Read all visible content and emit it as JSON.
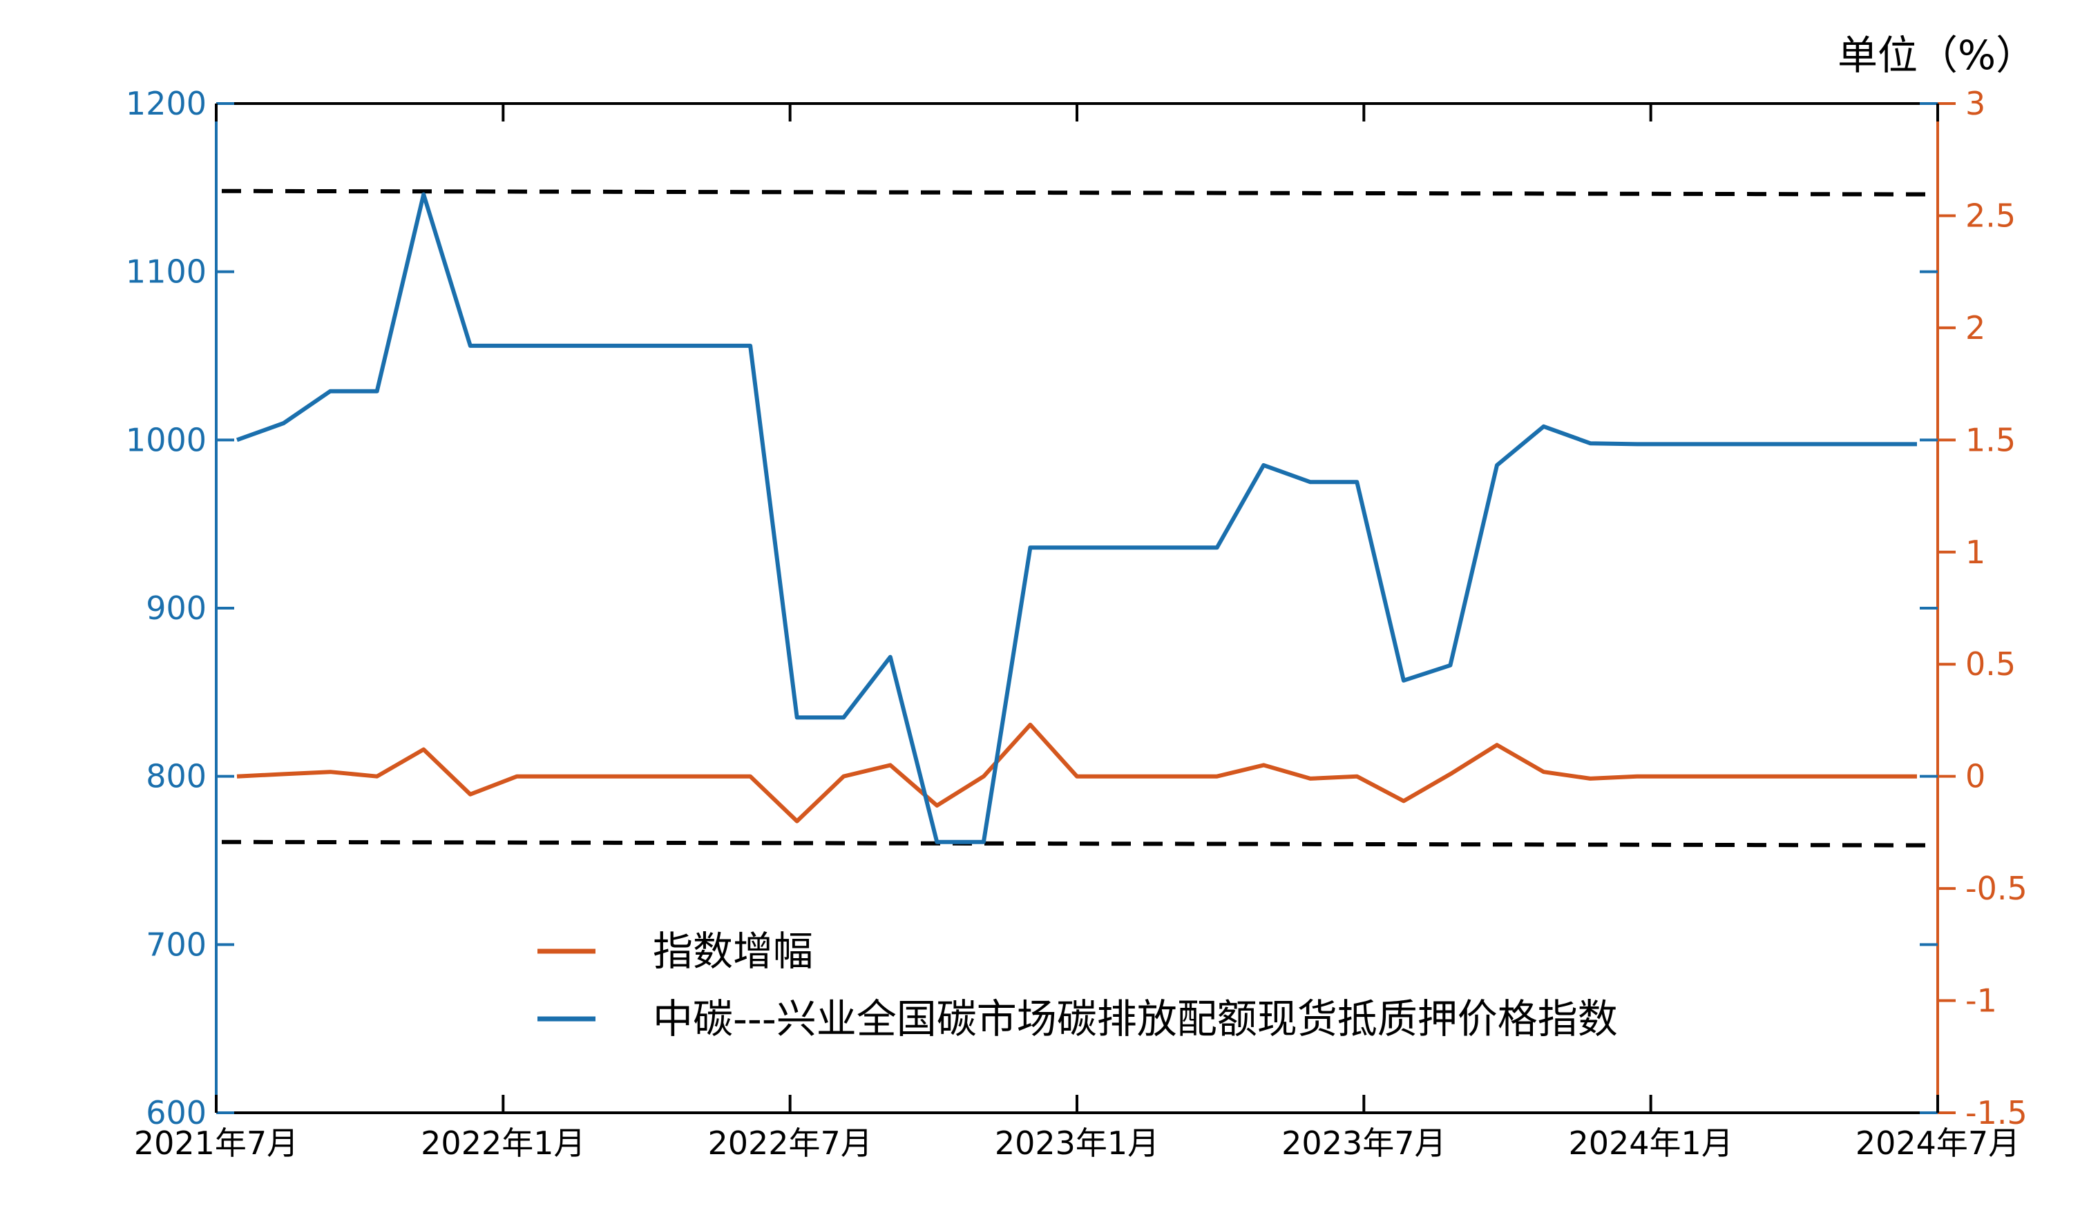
{
  "chart_data": {
    "type": "line",
    "unit_label": "单位（%）",
    "x": [
      "2021-07",
      "2021-08",
      "2021-09",
      "2021-10",
      "2021-11",
      "2021-12",
      "2022-01",
      "2022-02",
      "2022-03",
      "2022-04",
      "2022-05",
      "2022-06",
      "2022-07",
      "2022-08",
      "2022-09",
      "2022-10",
      "2022-11",
      "2022-12",
      "2023-01",
      "2023-02",
      "2023-03",
      "2023-04",
      "2023-05",
      "2023-06",
      "2023-07",
      "2023-08",
      "2023-09",
      "2023-10",
      "2023-11",
      "2023-12",
      "2024-01",
      "2024-02",
      "2024-03",
      "2024-04",
      "2024-05",
      "2024-06",
      "2024-07"
    ],
    "x_ticks": [
      "2021年7月",
      "2022年1月",
      "2022年7月",
      "2023年1月",
      "2023年7月",
      "2024年1月",
      "2024年7月"
    ],
    "y_left": {
      "range": [
        600,
        1200
      ],
      "ticks": [
        600,
        700,
        800,
        900,
        1000,
        1100,
        1200
      ],
      "color": "#1a6fad"
    },
    "y_right": {
      "range": [
        -1.5,
        3
      ],
      "ticks": [
        -1.5,
        -1,
        -0.5,
        0,
        0.5,
        1,
        1.5,
        2,
        2.5,
        3
      ],
      "tick_labels": [
        "-1.5",
        "-1",
        "-0.5",
        "0",
        "0.5",
        "1",
        "1.5",
        "2",
        "2.5",
        "3"
      ],
      "color": "#d4571e"
    },
    "series": [
      {
        "name": "指数增幅",
        "axis": "right",
        "color": "#d4571e",
        "values": [
          0,
          0.01,
          0.02,
          0,
          0.12,
          -0.08,
          0,
          0,
          0,
          0,
          0,
          0,
          -0.2,
          0,
          0.05,
          -0.13,
          0,
          0.23,
          0,
          0,
          0,
          0,
          0.05,
          -0.01,
          0,
          -0.11,
          0.01,
          0.14,
          0.02,
          -0.01,
          0,
          0,
          0,
          0,
          0,
          0,
          0
        ]
      },
      {
        "name": "中碳---兴业全国碳市场碳排放配额现货抵质押价格指数",
        "axis": "left",
        "color": "#1a6fad",
        "values": [
          1000,
          1010,
          1029,
          1029,
          1146,
          1056,
          1056,
          1056,
          1056,
          1056,
          1056,
          1056,
          835,
          835,
          871,
          761,
          761,
          936,
          936,
          936,
          936,
          936,
          985,
          975,
          975,
          857,
          866,
          985,
          1008,
          998,
          997.5,
          997.5,
          997.5,
          997.5,
          997.5,
          997.5,
          997.5
        ]
      }
    ],
    "reference_lines": [
      {
        "axis": "left",
        "style": "dashed",
        "color": "#000000",
        "from": 1148,
        "to": 1146
      },
      {
        "axis": "left",
        "style": "dashed",
        "color": "#000000",
        "from": 761,
        "to": 759
      }
    ],
    "legend": {
      "position": "bottom-center"
    },
    "grid": false
  }
}
